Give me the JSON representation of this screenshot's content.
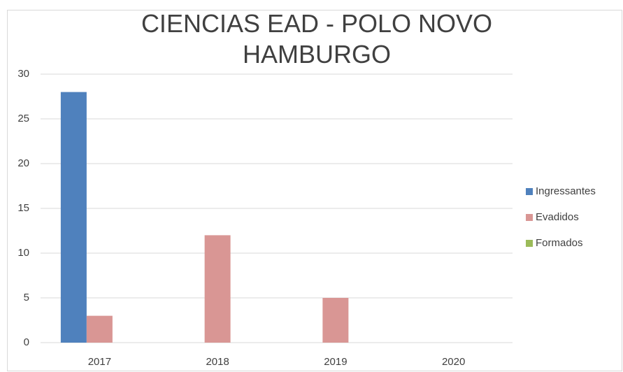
{
  "chart_data": {
    "type": "bar",
    "title": "CIENCIAS EAD - POLO NOVO HAMBURGO",
    "categories": [
      "2017",
      "2018",
      "2019",
      "2020"
    ],
    "series": [
      {
        "name": "Ingressantes",
        "color": "#4f81bd",
        "values": [
          28,
          0,
          0,
          0
        ]
      },
      {
        "name": "Evadidos",
        "color": "#d99694",
        "values": [
          3,
          12,
          5,
          0
        ]
      },
      {
        "name": "Formados",
        "color": "#9bbb59",
        "values": [
          0,
          0,
          0,
          0
        ]
      }
    ],
    "ylim": [
      0,
      30
    ],
    "yticks": [
      0,
      5,
      10,
      15,
      20,
      25,
      30
    ],
    "grid": true,
    "legend": "right"
  }
}
